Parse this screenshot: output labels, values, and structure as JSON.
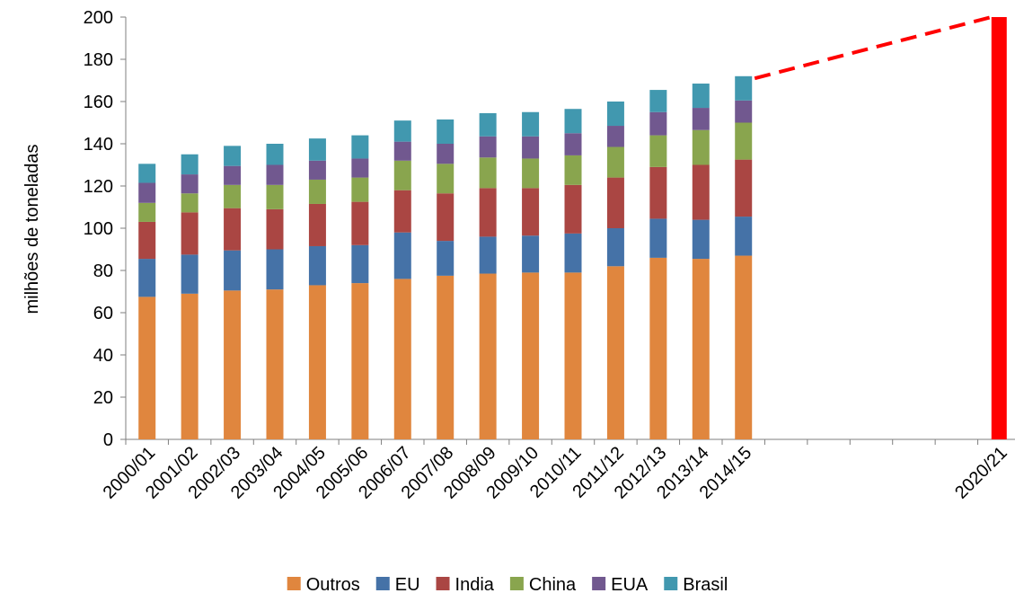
{
  "chart_data": {
    "type": "bar",
    "stacked": true,
    "title": "",
    "xlabel": "",
    "ylabel": "milhões de toneladas",
    "ylim": [
      0,
      200
    ],
    "yticks": [
      0,
      20,
      40,
      60,
      80,
      100,
      120,
      140,
      160,
      180,
      200
    ],
    "grid": false,
    "legend_position": "bottom",
    "categories": [
      "2000/01",
      "2001/02",
      "2002/03",
      "2003/04",
      "2004/05",
      "2005/06",
      "2006/07",
      "2007/08",
      "2008/09",
      "2009/10",
      "2010/11",
      "2011/12",
      "2012/13",
      "2013/14",
      "2014/15",
      "",
      "",
      "",
      "",
      "",
      "2020/21"
    ],
    "series": [
      {
        "name": "Outros",
        "color": "#e0863e",
        "values": [
          67.5,
          69,
          70.5,
          71,
          73,
          74,
          76,
          77.5,
          78.5,
          79,
          79,
          82,
          86,
          85.5,
          87,
          null,
          null,
          null,
          null,
          null,
          null
        ]
      },
      {
        "name": "EU",
        "color": "#4572a7",
        "values": [
          18,
          18.5,
          19,
          19,
          18.5,
          18,
          22,
          16.5,
          17.5,
          17.5,
          18.5,
          18,
          18.5,
          18.5,
          18.5,
          null,
          null,
          null,
          null,
          null,
          null
        ]
      },
      {
        "name": "India",
        "color": "#aa4643",
        "values": [
          17.5,
          20,
          20,
          19,
          20,
          20.5,
          20,
          22.5,
          23,
          22.5,
          23,
          24,
          24.5,
          26,
          27,
          null,
          null,
          null,
          null,
          null,
          null
        ]
      },
      {
        "name": "China",
        "color": "#89a54e",
        "values": [
          9,
          9,
          11,
          11.5,
          11.5,
          11.5,
          14,
          14,
          14.5,
          14,
          14,
          14.5,
          15,
          16.5,
          17.5,
          null,
          null,
          null,
          null,
          null,
          null
        ]
      },
      {
        "name": "EUA",
        "color": "#71588f",
        "values": [
          9.5,
          9,
          9,
          9.5,
          9,
          9,
          9,
          9.5,
          10,
          10.5,
          10.5,
          10,
          11,
          10.5,
          10.5,
          null,
          null,
          null,
          null,
          null,
          null
        ]
      },
      {
        "name": "Brasil",
        "color": "#4198af",
        "values": [
          9,
          9.5,
          9.5,
          10,
          10.5,
          11,
          10,
          11.5,
          11,
          11.5,
          11.5,
          11.5,
          10.5,
          11.5,
          11.5,
          null,
          null,
          null,
          null,
          null,
          null
        ]
      }
    ],
    "projection": {
      "category": "2020/21",
      "value": 200,
      "color": "#ff0000",
      "trend_from": "2014/15",
      "trend_from_value": 171,
      "line_style": "dashed"
    }
  }
}
